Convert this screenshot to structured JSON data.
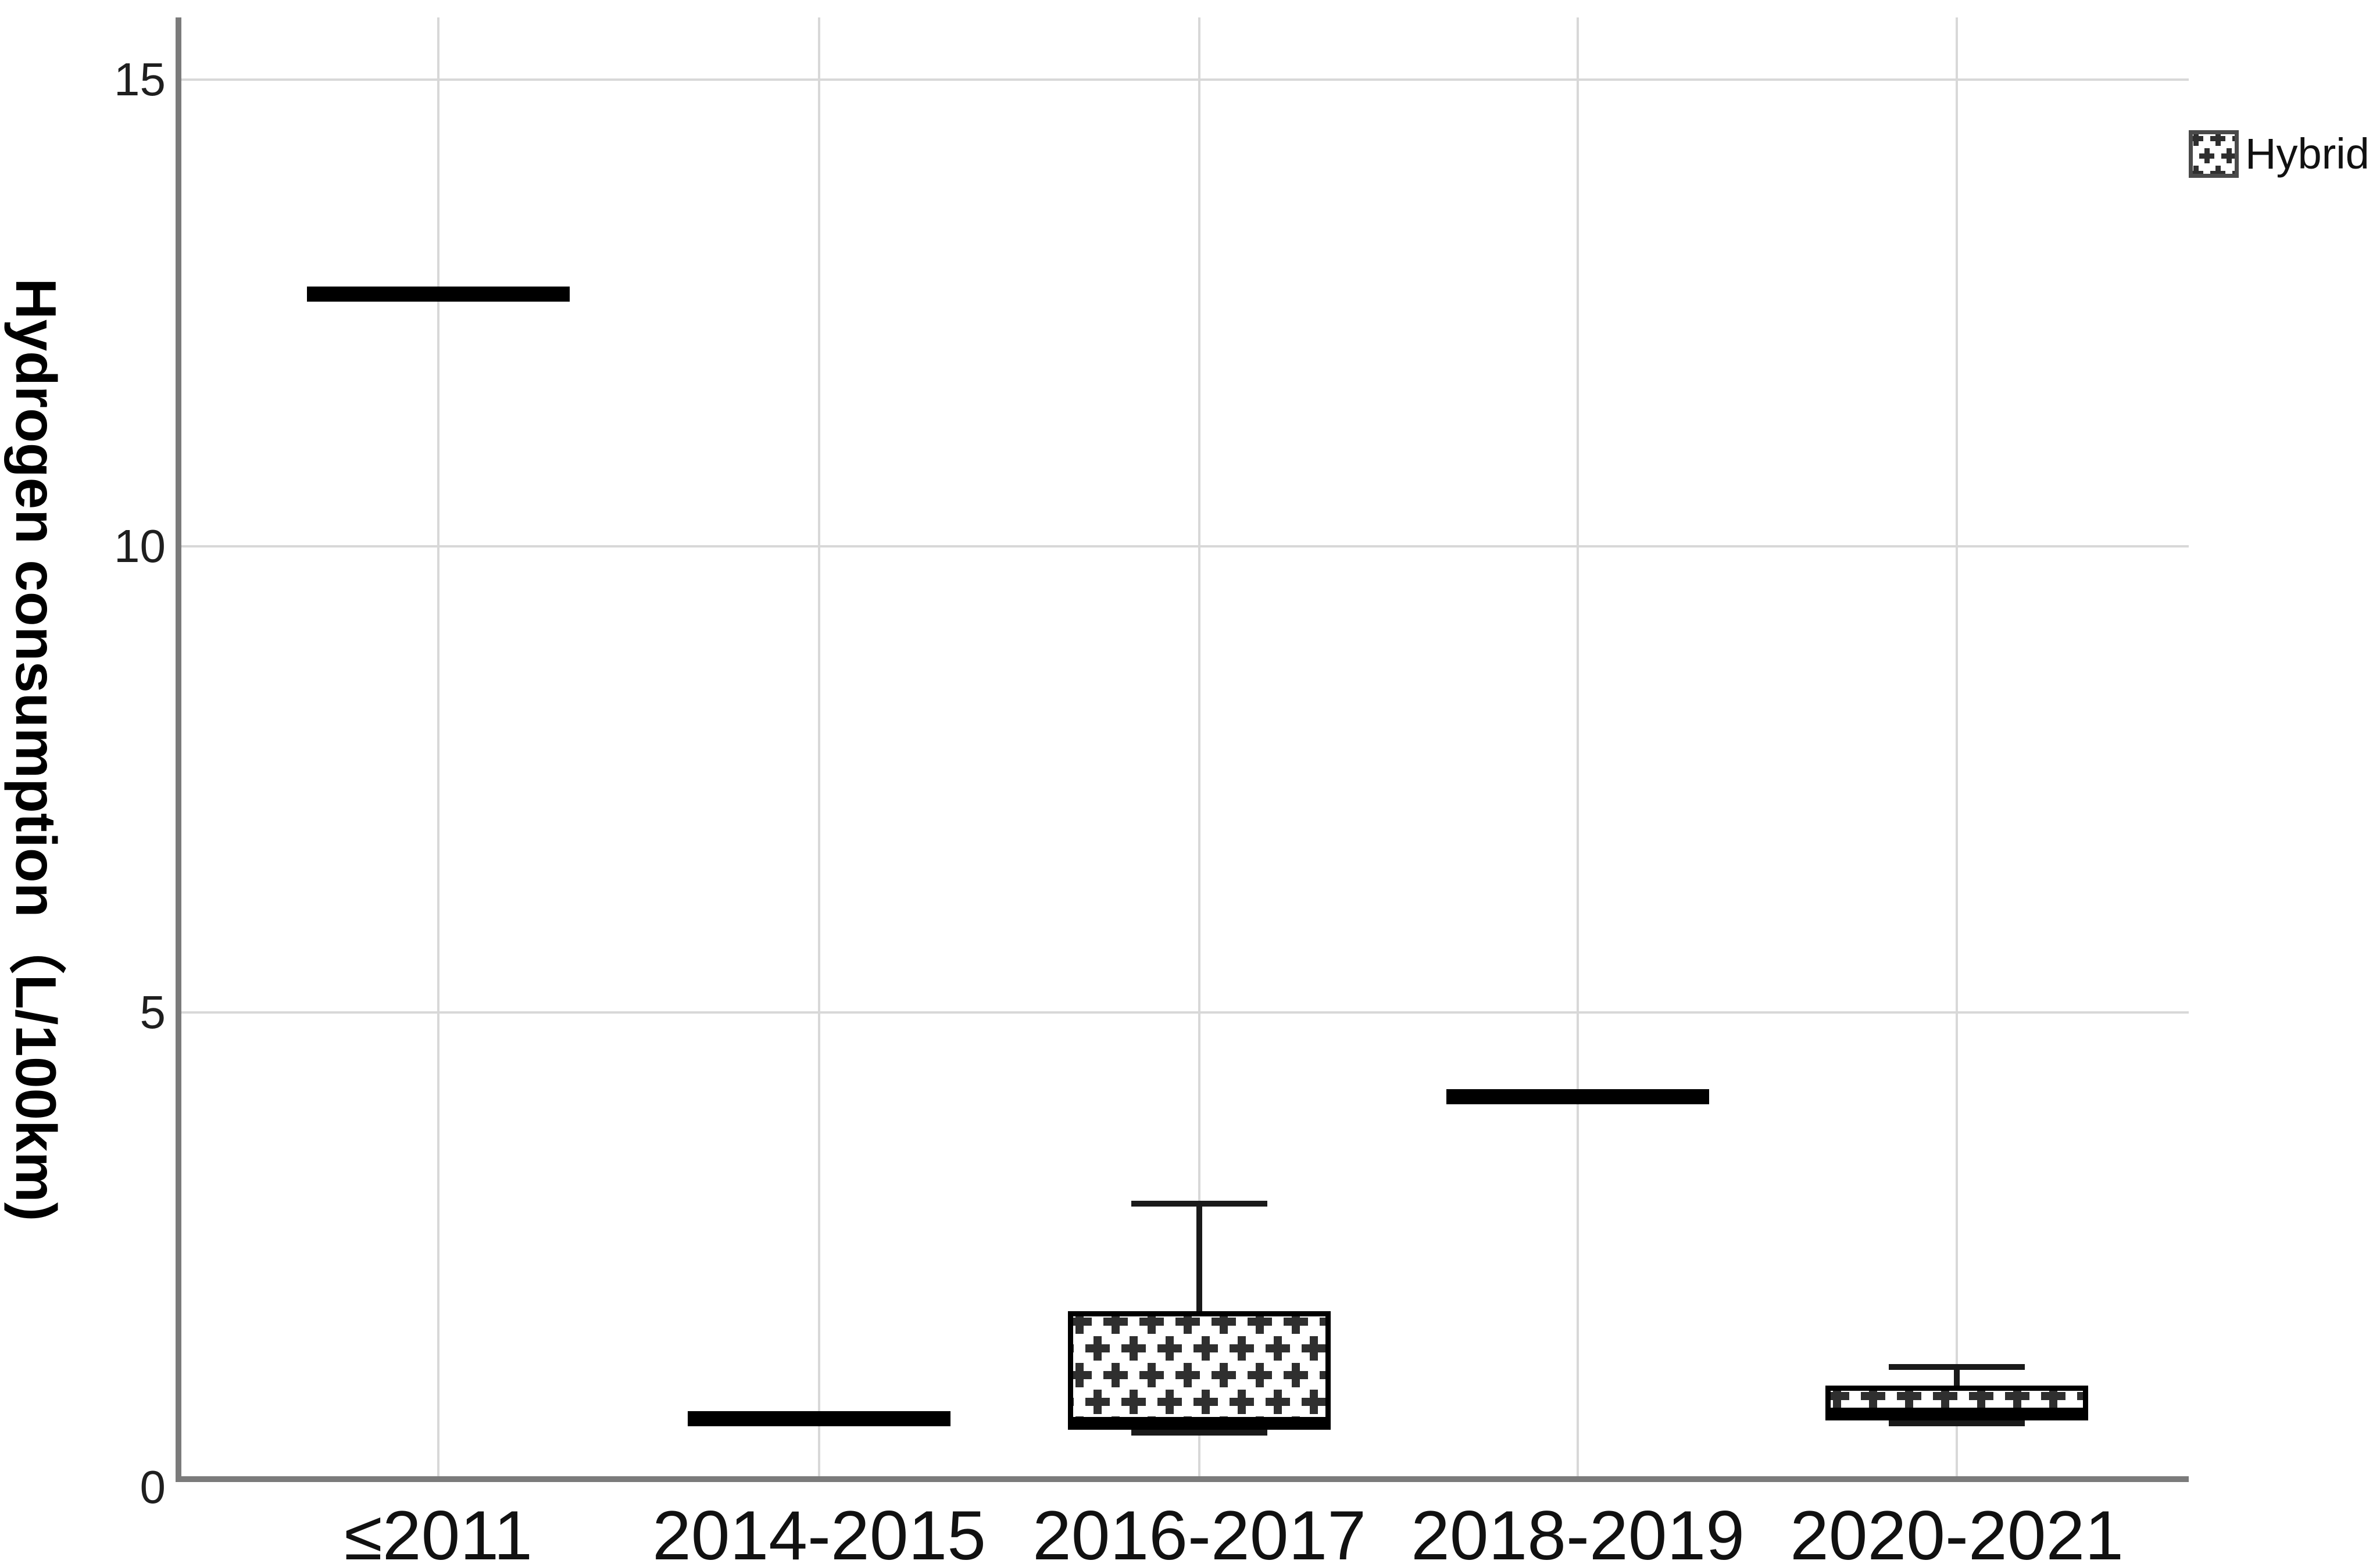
{
  "legend": {
    "label": "Hybrid",
    "swatch": "plus-crosshatch-swatch"
  },
  "y_axis": {
    "title": "Hydrogen consumption（L/100km)",
    "tick_labels": [
      "15",
      "10",
      "5",
      "0"
    ]
  },
  "x_axis": {
    "tick_labels": [
      "≤2011",
      "2014-2015",
      "2016-2017",
      "2018-2019",
      "2020-2021"
    ]
  },
  "chart_data": {
    "type": "box",
    "title": "",
    "xlabel": "",
    "ylabel": "Hydrogen consumption（L/100km)",
    "ylim": [
      0,
      15.5
    ],
    "yticks": [
      15,
      10,
      5,
      0
    ],
    "grid": "on",
    "legend_position": "top-right",
    "legend_entries": [
      "Hybrid"
    ],
    "categories": [
      "≤2011",
      "2014-2015",
      "2016-2017",
      "2018-2019",
      "2020-2021"
    ],
    "series": [
      {
        "category": "≤2011",
        "display": "median-line",
        "stats": {
          "min": 12.7,
          "q1": 12.7,
          "median": 12.7,
          "q3": 12.7,
          "max": 12.7
        }
      },
      {
        "category": "2014-2015",
        "display": "median-line",
        "stats": {
          "min": 0.65,
          "q1": 0.65,
          "median": 0.65,
          "q3": 0.65,
          "max": 0.65
        }
      },
      {
        "category": "2016-2017",
        "display": "box",
        "stats": {
          "min": 0.5,
          "q1": 0.55,
          "median": 0.6,
          "q3": 1.8,
          "max": 2.95
        }
      },
      {
        "category": "2018-2019",
        "display": "median-line",
        "stats": {
          "min": 4.1,
          "q1": 4.1,
          "median": 4.1,
          "q3": 4.1,
          "max": 4.1
        }
      },
      {
        "category": "2020-2021",
        "display": "box",
        "stats": {
          "min": 0.6,
          "q1": 0.65,
          "median": 0.7,
          "q3": 1.0,
          "max": 1.2
        }
      }
    ],
    "colors": {
      "box_fill_pattern": "plus-crosshatch",
      "box_line": "#000000",
      "grid_line": "#d8d8d8",
      "axis_line": "#7b7b7b",
      "background": "#ffffff"
    }
  }
}
